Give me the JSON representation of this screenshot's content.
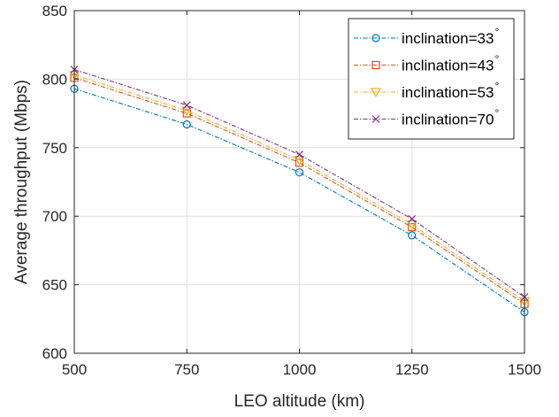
{
  "chart_data": {
    "type": "line",
    "title": "",
    "xlabel": "LEO altitude (km)",
    "ylabel": "Average throughput (Mbps)",
    "xlim": [
      500,
      1500
    ],
    "ylim": [
      600,
      850
    ],
    "xticks": [
      500,
      750,
      1000,
      1250,
      1500
    ],
    "yticks": [
      600,
      650,
      700,
      750,
      800,
      850
    ],
    "grid": true,
    "legend_position": "top-right",
    "x": [
      500,
      750,
      1000,
      1250,
      1500
    ],
    "series": [
      {
        "name": "inclination=33",
        "values": [
          793,
          767,
          732,
          686,
          630
        ],
        "color": "#0072BD",
        "marker": "circle"
      },
      {
        "name": "inclination=43",
        "values": [
          801,
          775,
          739,
          692,
          636
        ],
        "color": "#D95319",
        "marker": "square"
      },
      {
        "name": "inclination=53",
        "values": [
          803,
          777,
          741,
          694,
          638
        ],
        "color": "#EDB120",
        "marker": "triangle-down"
      },
      {
        "name": "inclination=70",
        "values": [
          807,
          781,
          745,
          698,
          641
        ],
        "color": "#7E2F8E",
        "marker": "x"
      }
    ],
    "degree_symbol": "°"
  }
}
